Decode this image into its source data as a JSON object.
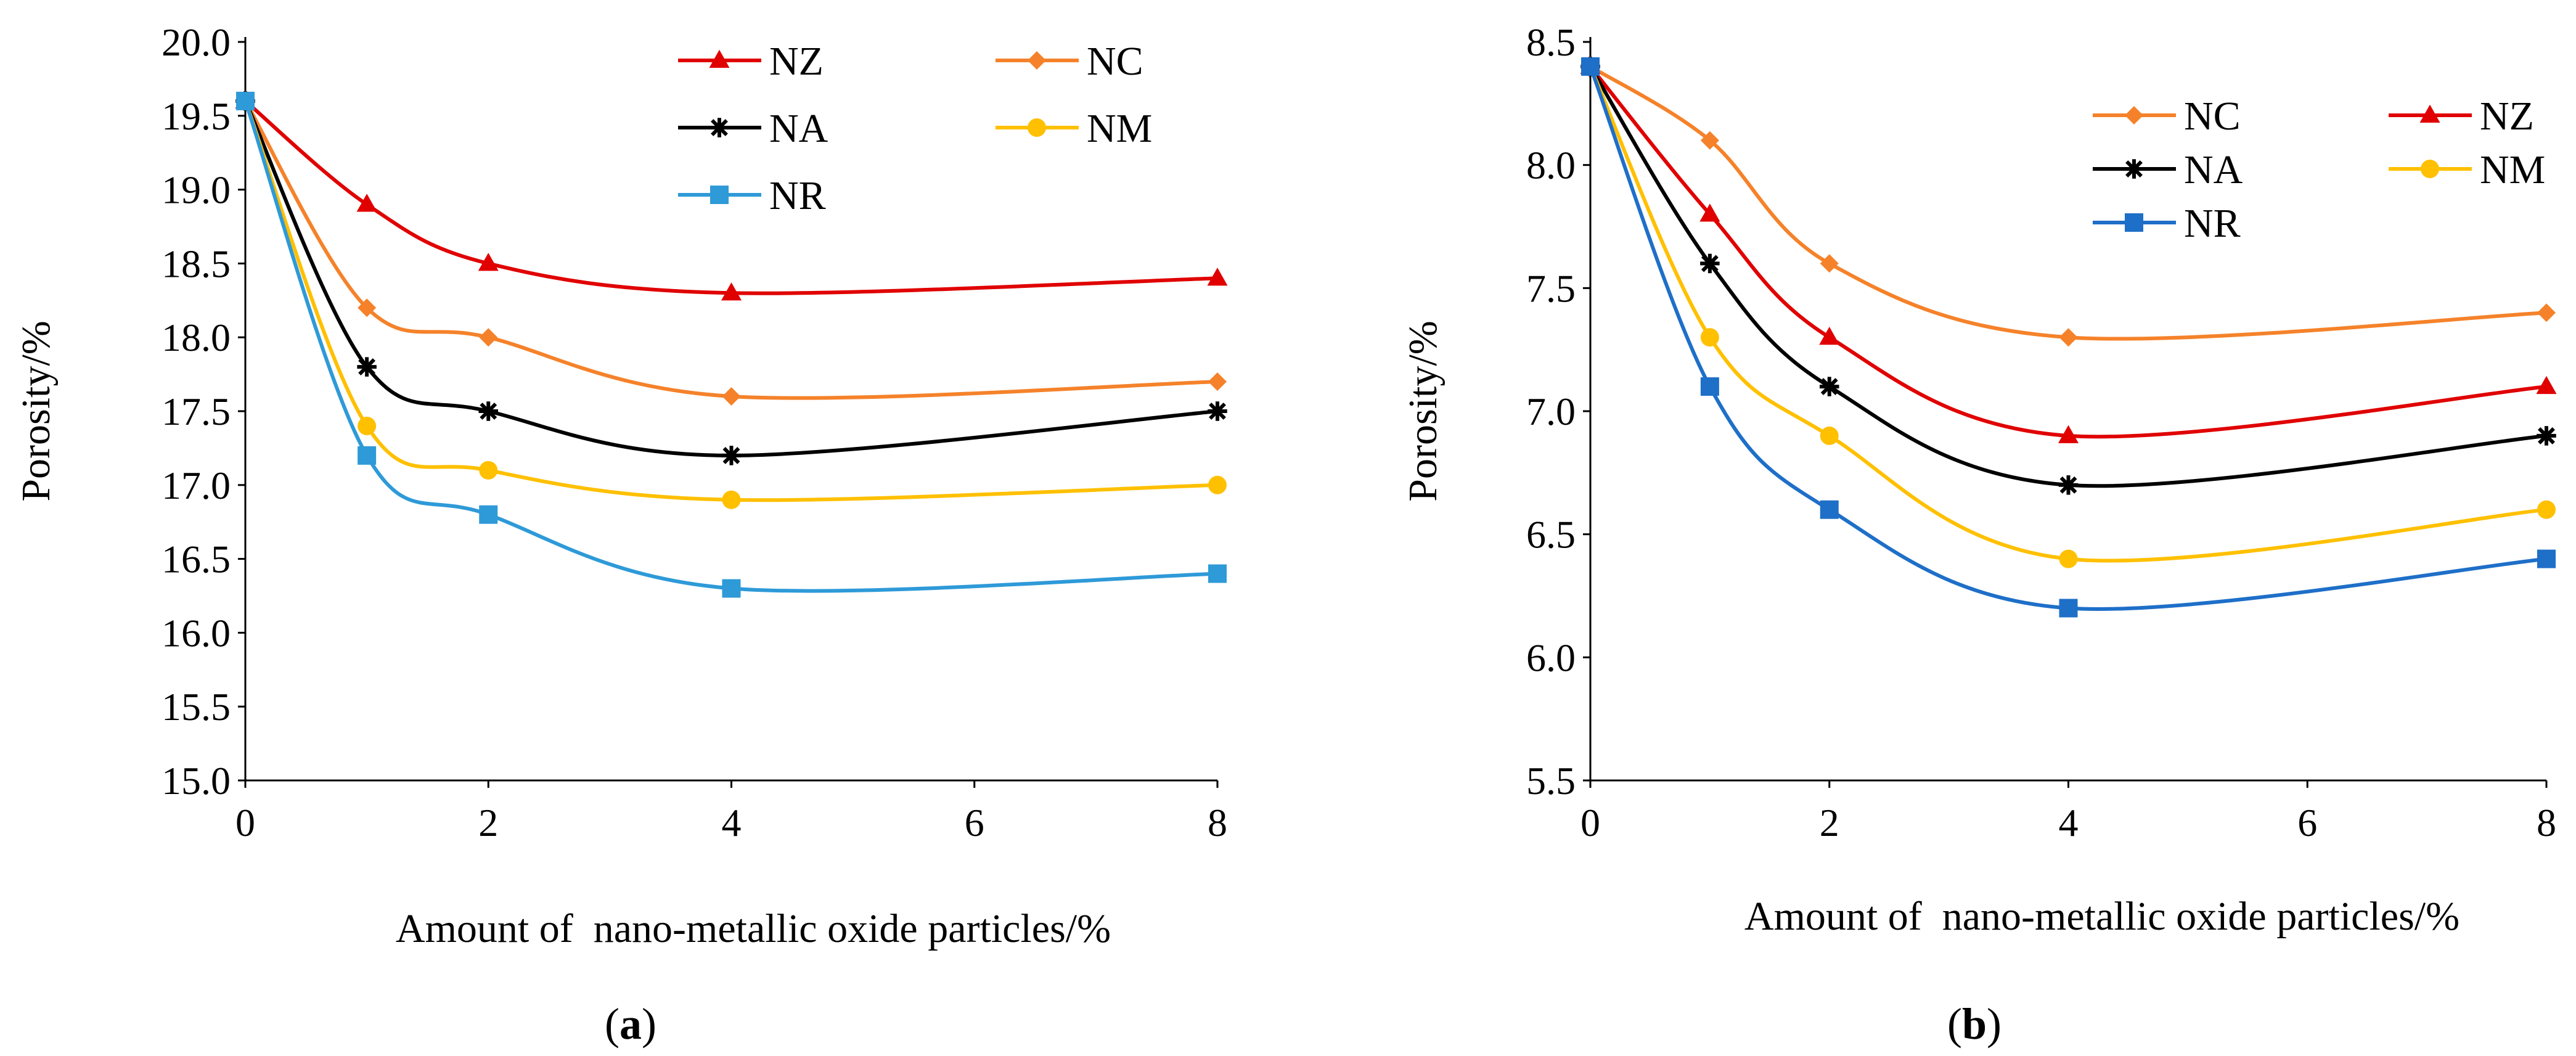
{
  "chart_data": [
    {
      "id": "a",
      "type": "line",
      "caption": "(a)",
      "caption_letter": "a",
      "xlabel": "Amount of  nano-metallic oxide particles/%",
      "ylabel": "Porosity/%",
      "x": [
        0,
        1,
        2,
        4,
        8
      ],
      "xlim": [
        0,
        8
      ],
      "ylim": [
        15.0,
        20.0
      ],
      "xticks": [
        "0",
        "2",
        "4",
        "6",
        "8"
      ],
      "xtick_values": [
        0,
        2,
        4,
        6,
        8
      ],
      "yticks": [
        "15.0",
        "15.5",
        "16.0",
        "16.5",
        "17.0",
        "17.5",
        "18.0",
        "18.5",
        "19.0",
        "19.5",
        "20.0"
      ],
      "ytick_values": [
        15.0,
        15.5,
        16.0,
        16.5,
        17.0,
        17.5,
        18.0,
        18.5,
        19.0,
        19.5,
        20.0
      ],
      "grid": false,
      "legend_position": "top-right",
      "series": [
        {
          "name": "NZ",
          "color": "#E00000",
          "marker": "triangle",
          "values": [
            19.6,
            18.9,
            18.5,
            18.3,
            18.4
          ]
        },
        {
          "name": "NC",
          "color": "#F5822A",
          "marker": "diamond",
          "values": [
            19.6,
            18.2,
            18.0,
            17.6,
            17.7
          ]
        },
        {
          "name": "NA",
          "color": "#000000",
          "marker": "star",
          "values": [
            19.6,
            17.8,
            17.5,
            17.2,
            17.5
          ]
        },
        {
          "name": "NM",
          "color": "#FFC000",
          "marker": "circle",
          "values": [
            19.6,
            17.4,
            17.1,
            16.9,
            17.0
          ]
        },
        {
          "name": "NR",
          "color": "#2E9AD8",
          "marker": "square",
          "values": [
            19.6,
            17.2,
            16.8,
            16.3,
            16.4
          ]
        }
      ]
    },
    {
      "id": "b",
      "type": "line",
      "caption": "(b)",
      "caption_letter": "b",
      "xlabel": "Amount of  nano-metallic oxide particles/%",
      "ylabel": "Porosity/%",
      "x": [
        0,
        1,
        2,
        4,
        8
      ],
      "xlim": [
        0,
        8
      ],
      "ylim": [
        5.5,
        8.5
      ],
      "xticks": [
        "0",
        "2",
        "4",
        "6",
        "8"
      ],
      "xtick_values": [
        0,
        2,
        4,
        6,
        8
      ],
      "yticks": [
        "5.5",
        "6.0",
        "6.5",
        "7.0",
        "7.5",
        "8.0",
        "8.5"
      ],
      "ytick_values": [
        5.5,
        6.0,
        6.5,
        7.0,
        7.5,
        8.0,
        8.5
      ],
      "grid": false,
      "legend_position": "top-right",
      "series": [
        {
          "name": "NC",
          "color": "#F5822A",
          "marker": "diamond",
          "values": [
            8.4,
            8.1,
            7.6,
            7.3,
            7.4
          ]
        },
        {
          "name": "NZ",
          "color": "#E00000",
          "marker": "triangle",
          "values": [
            8.4,
            7.8,
            7.3,
            6.9,
            7.1
          ]
        },
        {
          "name": "NA",
          "color": "#000000",
          "marker": "star",
          "values": [
            8.4,
            7.6,
            7.1,
            6.7,
            6.9
          ]
        },
        {
          "name": "NM",
          "color": "#FFC000",
          "marker": "circle",
          "values": [
            8.4,
            7.3,
            6.9,
            6.4,
            6.6
          ]
        },
        {
          "name": "NR",
          "color": "#1E6FC8",
          "marker": "square",
          "values": [
            8.4,
            7.1,
            6.6,
            6.2,
            6.4
          ]
        }
      ]
    }
  ]
}
